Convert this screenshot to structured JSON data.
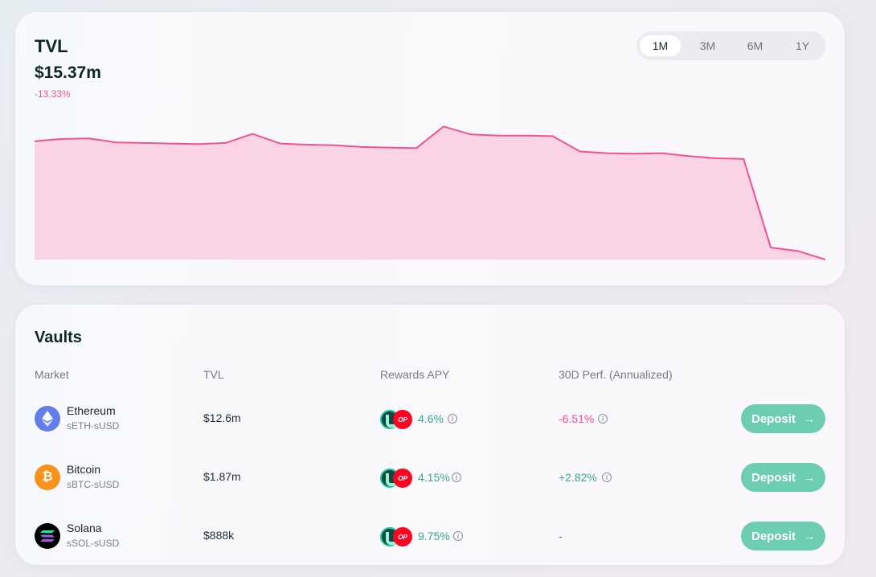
{
  "tvl": {
    "title": "TVL",
    "value": "$15.37m",
    "change": "-13.33%",
    "ranges": [
      "1M",
      "3M",
      "6M",
      "1Y"
    ],
    "active_range": "1M"
  },
  "chart_data": {
    "type": "area",
    "x": [
      0,
      1,
      2,
      3,
      4,
      5,
      6,
      7,
      8,
      9,
      10,
      11,
      12,
      13,
      14,
      15,
      16,
      17,
      18,
      19,
      20,
      21,
      22,
      23,
      24,
      25,
      26,
      27,
      28,
      29
    ],
    "y": [
      14.05,
      14.09,
      14.1,
      14.03,
      14.02,
      14.01,
      14.0,
      14.02,
      14.18,
      14.01,
      13.99,
      13.98,
      13.95,
      13.94,
      13.93,
      14.31,
      14.17,
      14.15,
      14.15,
      14.14,
      13.87,
      13.84,
      13.83,
      13.84,
      13.79,
      13.75,
      13.74,
      12.18,
      12.12,
      11.97
    ],
    "ylim": [
      11.97,
      14.4
    ],
    "line_color": "#f0548f",
    "fill_color": "#fad3e4",
    "grid": false
  },
  "vaults": {
    "title": "Vaults",
    "columns": [
      "Market",
      "TVL",
      "Rewards APY",
      "30D Perf. (Annualized)"
    ],
    "deposit_label": "Deposit",
    "rows": [
      {
        "name": "Ethereum",
        "pair": "sETH-sUSD",
        "tvl": "$12.6m",
        "apy": "4.6%",
        "perf": "-6.51%",
        "perf_type": "neg",
        "icon": "ethereum-icon",
        "icon_color": "#627eea"
      },
      {
        "name": "Bitcoin",
        "pair": "sBTC-sUSD",
        "tvl": "$1.87m",
        "apy": "4.15%",
        "perf": "+2.82%",
        "perf_type": "pos",
        "icon": "bitcoin-icon",
        "icon_color": "#f7931a"
      },
      {
        "name": "Solana",
        "pair": "sSOL-sUSD",
        "tvl": "$888k",
        "apy": "9.75%",
        "perf": "-",
        "perf_type": "none",
        "icon": "solana-icon",
        "icon_color": "#000000"
      }
    ]
  }
}
